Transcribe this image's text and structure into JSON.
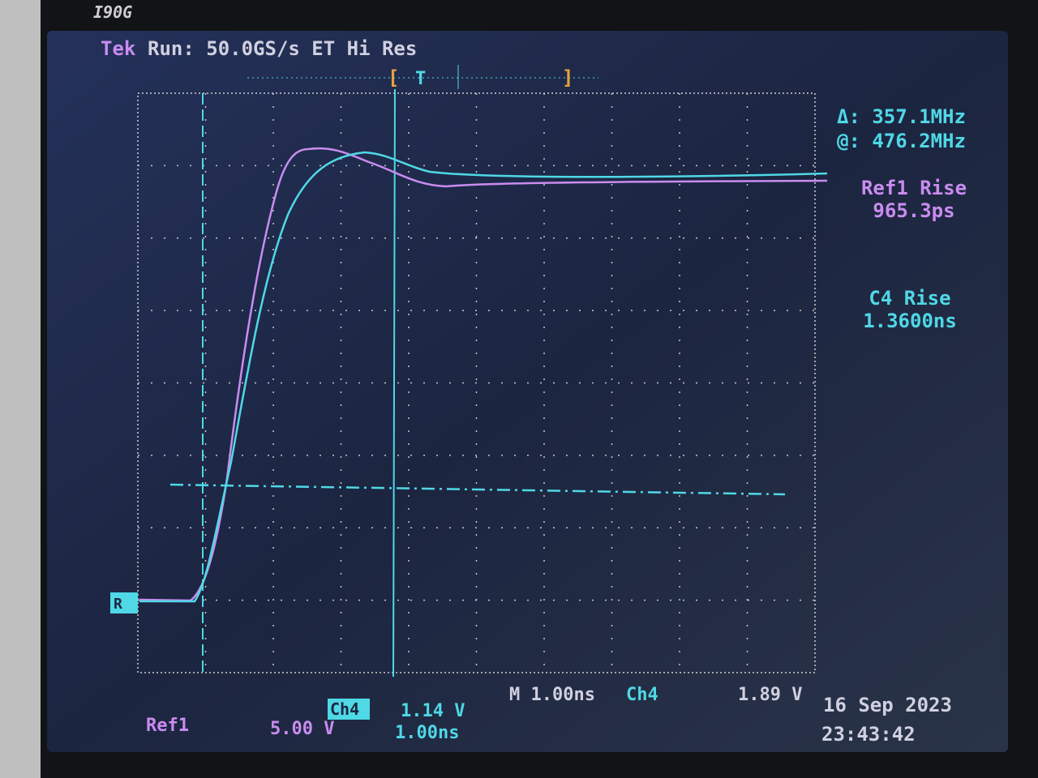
{
  "bezel": {
    "model": "I90G"
  },
  "header": {
    "brand": "Tek",
    "status": "Run: 50.0GS/s ET Hi Res",
    "trigger_marker": "T"
  },
  "readouts": {
    "delta": "Δ: 357.1MHz",
    "at": "@: 476.2MHz",
    "ref1_label": "Ref1 Rise",
    "ref1_value": "965.3ps",
    "c4_label": "C4 Rise",
    "c4_value": "1.3600ns"
  },
  "ref_marker": "R",
  "footer": {
    "timebase": "M 1.00ns",
    "trigger_channel": "Ch4",
    "trigger_level": "1.89 V",
    "date": "16 Sep 2023",
    "time": "23:43:42",
    "ref1_name": "Ref1",
    "ref1_scale": "5.00 V",
    "ch4_name": "Ch4",
    "ch4_scale": "1.14 V",
    "ch4_time": "1.00ns"
  }
}
